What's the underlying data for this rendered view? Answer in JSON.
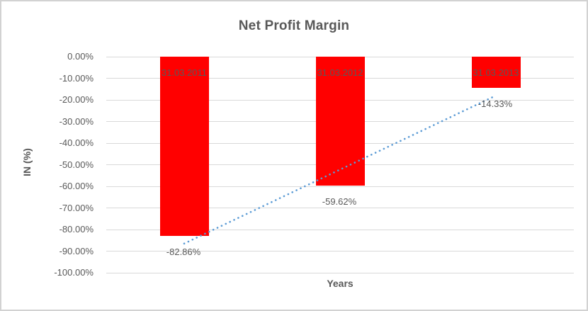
{
  "chart_data": {
    "type": "bar",
    "title": "Net Profit Margin",
    "xlabel": "Years",
    "ylabel": "IN (%)",
    "categories": [
      "31.03.2011",
      "31.03.2012",
      "31.03.2013"
    ],
    "values": [
      -82.86,
      -59.62,
      -14.33
    ],
    "data_labels": [
      "-82.86%",
      "-59.62%",
      "-14.33%"
    ],
    "ylim": [
      -100,
      0
    ],
    "ytick_step": 10,
    "ytick_labels": [
      "0.00%",
      "-10.00%",
      "-20.00%",
      "-30.00%",
      "-40.00%",
      "-50.00%",
      "-60.00%",
      "-70.00%",
      "-80.00%",
      "-90.00%",
      "-100.00%"
    ],
    "grid": true,
    "legend": "none",
    "trendline": {
      "type": "linear",
      "style": "dotted",
      "start_value": -86.5,
      "end_value": -18.0
    },
    "colors": {
      "bar": "#ff0000",
      "gridline": "#d9d9d9",
      "text": "#595959",
      "trendline": "#5b9bd5",
      "frame": "#d2d2d2",
      "background": "#ffffff"
    }
  }
}
